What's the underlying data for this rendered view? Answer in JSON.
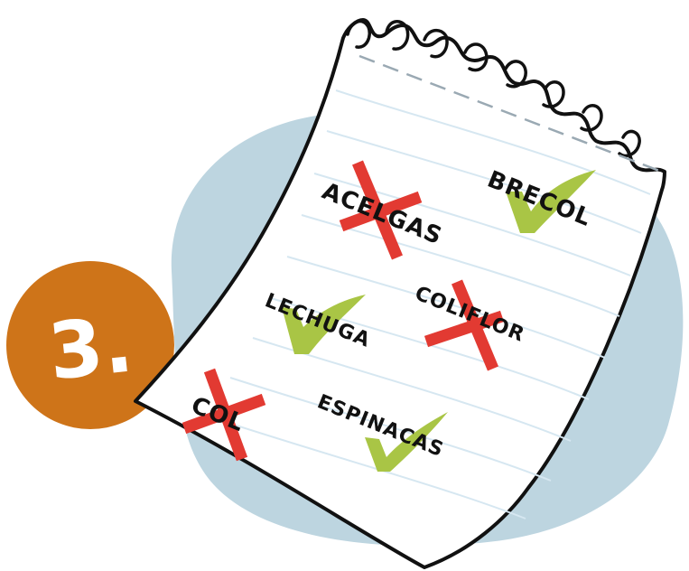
{
  "step_badge": {
    "text": "3.",
    "color": "#CE7419"
  },
  "backdrop": {
    "color": "#BDD5E0"
  },
  "list": {
    "items": [
      {
        "label": "ACELGAS",
        "mark": "x-icon"
      },
      {
        "label": "BRECOL",
        "mark": "check-icon"
      },
      {
        "label": "LECHUGA",
        "mark": "check-icon"
      },
      {
        "label": "COLIFLOR",
        "mark": "x-icon"
      },
      {
        "label": "COL",
        "mark": "x-icon"
      },
      {
        "label": "ESPINACAS",
        "mark": "check-icon"
      }
    ]
  },
  "colors": {
    "check": "#A9C545",
    "cross": "#E23A32",
    "paper": "#FFFFFF",
    "lines": "#D6E7F1"
  }
}
